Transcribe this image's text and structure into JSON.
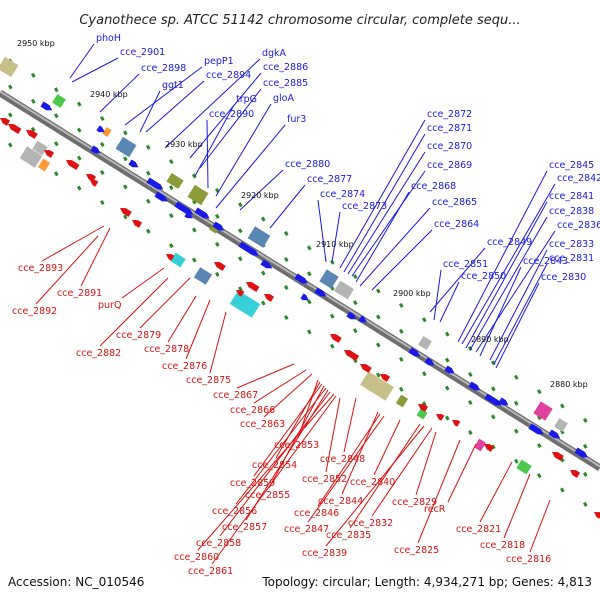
{
  "title": "Cyanothece sp. ATCC 51142 chromosome circular, complete sequ...",
  "footer": {
    "accession": "Accession: NC_010546",
    "summary": "Topology: circular; Length: 4,934,271 bp; Genes: 4,813"
  },
  "colors": {
    "forward": "#1a1ae6",
    "reverse": "#dd1111",
    "backbone": "#888888",
    "tick": "#2a8a2a",
    "feature_tan": "#c8c08a",
    "feature_gray": "#b4b4b4",
    "feature_steel": "#5a86b4",
    "feature_cyan": "#38d0d8",
    "feature_green": "#4cc84c",
    "feature_olive": "#8c9a3a",
    "feature_magenta": "#e040a0",
    "feature_orange": "#ff9933"
  },
  "kbp_labels": [
    "2950 kbp",
    "2940 kbp",
    "2930 kbp",
    "2920 kbp",
    "2910 kbp",
    "2900 kbp",
    "2890 kbp",
    "2880 kbp"
  ],
  "forward_labels": [
    "phoH",
    "cce_2901",
    "cce_2898",
    "pepP1",
    "ggt1",
    "cce_2894",
    "dgkA",
    "cce_2886",
    "trpG",
    "cce_2885",
    "cce_2890",
    "gloA",
    "fur3",
    "cce_2880",
    "cce_2877",
    "cce_2874",
    "cce_2873",
    "cce_2872",
    "cce_2871",
    "cce_2870",
    "cce_2869",
    "cce_2868",
    "cce_2865",
    "cce_2864",
    "cce_2849",
    "cce_2851",
    "cce_2850",
    "cce_2845",
    "cce_2842",
    "cce_2841",
    "cce_2838",
    "cce_2836",
    "cce_2843",
    "cce_2833",
    "cce_2831",
    "cce_2830"
  ],
  "reverse_labels": [
    "cce_2893",
    "cce_2891",
    "cce_2892",
    "purQ",
    "cce_2879",
    "cce_2882",
    "cce_2878",
    "cce_2876",
    "cce_2875",
    "cce_2867",
    "cce_2866",
    "cce_2863",
    "cce_2853",
    "cce_2854",
    "cce_2859",
    "cce_2855",
    "cce_2856",
    "cce_2857",
    "cce_2858",
    "cce_2860",
    "cce_2861",
    "cce_2852",
    "cce_2848",
    "cce_2844",
    "cce_2846",
    "cce_2847",
    "cce_2840",
    "cce_2835",
    "cce_2839",
    "cce_2832",
    "cce_2829",
    "cce_2825",
    "recR",
    "cce_2821",
    "cce_2818",
    "cce_2816"
  ]
}
